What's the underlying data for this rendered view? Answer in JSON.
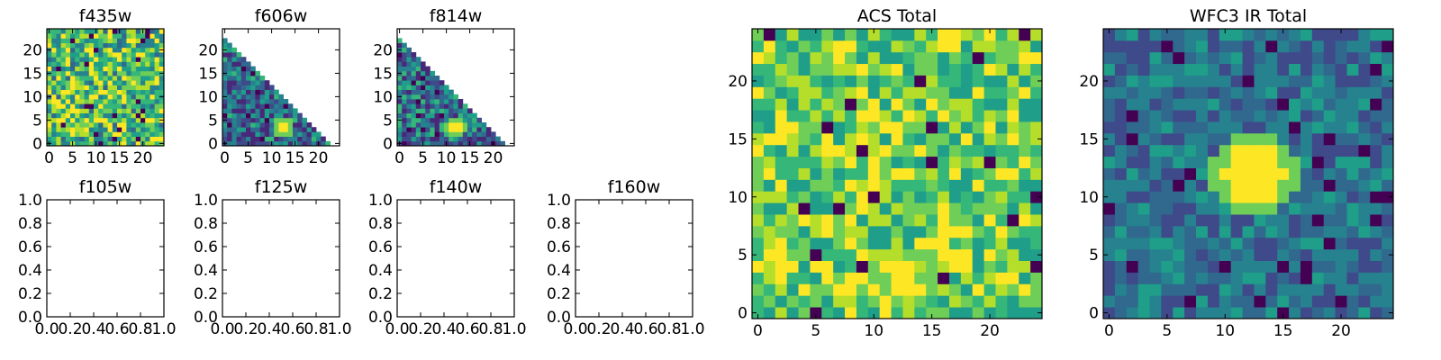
{
  "colormap": "viridis",
  "colors": {
    "viridis": [
      "#440154",
      "#482878",
      "#3e4a89",
      "#31688e",
      "#26828e",
      "#1f9e89",
      "#35b779",
      "#6ece58",
      "#b5de2b",
      "#fde725"
    ],
    "axes_border": "#000000",
    "background": "#ffffff"
  },
  "chart_data": [
    {
      "id": "f435w",
      "type": "heatmap",
      "title": "f435w",
      "grid": [
        25,
        25
      ],
      "mask": "none",
      "xticks": [
        "0",
        "5",
        "10",
        "15",
        "20"
      ],
      "yticks": [
        "0",
        "5",
        "10",
        "15",
        "20"
      ],
      "xlim": [
        -0.5,
        24.5
      ],
      "ylim": [
        -0.5,
        24.5
      ],
      "value_range": [
        0.35,
        1.0
      ],
      "blob": null,
      "seed": 11
    },
    {
      "id": "f606w",
      "type": "heatmap",
      "title": "f606w",
      "grid": [
        25,
        25
      ],
      "mask": "lower-left-triangle",
      "xticks": [
        "0",
        "5",
        "10",
        "15",
        "20"
      ],
      "yticks": [
        "0",
        "5",
        "10",
        "15",
        "20"
      ],
      "xlim": [
        -0.5,
        24.5
      ],
      "ylim": [
        -0.5,
        24.5
      ],
      "value_range": [
        0.1,
        0.65
      ],
      "blob": {
        "x": 12.5,
        "y": 3.5,
        "r": 1.3
      },
      "seed": 23
    },
    {
      "id": "f814w",
      "type": "heatmap",
      "title": "f814w",
      "grid": [
        25,
        25
      ],
      "mask": "lower-left-triangle",
      "xticks": [
        "0",
        "5",
        "10",
        "15",
        "20"
      ],
      "yticks": [
        "0",
        "5",
        "10",
        "15",
        "20"
      ],
      "xlim": [
        -0.5,
        24.5
      ],
      "ylim": [
        -0.5,
        24.5
      ],
      "value_range": [
        0.1,
        0.7
      ],
      "blob": {
        "x": 12.0,
        "y": 3.5,
        "r": 1.2
      },
      "seed": 37
    },
    {
      "id": "f105w",
      "type": "empty",
      "title": "f105w",
      "xticks": [
        "0.0",
        "0.2",
        "0.4",
        "0.6",
        "0.8",
        "1.0"
      ],
      "yticks": [
        "0.0",
        "0.2",
        "0.4",
        "0.6",
        "0.8",
        "1.0"
      ],
      "xlim": [
        0,
        1
      ],
      "ylim": [
        0,
        1
      ]
    },
    {
      "id": "f125w",
      "type": "empty",
      "title": "f125w",
      "xticks": [
        "0.0",
        "0.2",
        "0.4",
        "0.6",
        "0.8",
        "1.0"
      ],
      "yticks": [
        "0.0",
        "0.2",
        "0.4",
        "0.6",
        "0.8",
        "1.0"
      ],
      "xlim": [
        0,
        1
      ],
      "ylim": [
        0,
        1
      ]
    },
    {
      "id": "f140w",
      "type": "empty",
      "title": "f140w",
      "xticks": [
        "0.0",
        "0.2",
        "0.4",
        "0.6",
        "0.8",
        "1.0"
      ],
      "yticks": [
        "0.0",
        "0.2",
        "0.4",
        "0.6",
        "0.8",
        "1.0"
      ],
      "xlim": [
        0,
        1
      ],
      "ylim": [
        0,
        1
      ]
    },
    {
      "id": "f160w",
      "type": "empty",
      "title": "f160w",
      "xticks": [
        "0.0",
        "0.2",
        "0.4",
        "0.6",
        "0.8",
        "1.0"
      ],
      "yticks": [
        "0.0",
        "0.2",
        "0.4",
        "0.6",
        "0.8",
        "1.0"
      ],
      "xlim": [
        0,
        1
      ],
      "ylim": [
        0,
        1
      ]
    },
    {
      "id": "acs-total",
      "type": "heatmap",
      "title": "ACS Total",
      "grid": [
        25,
        25
      ],
      "mask": "none",
      "xticks": [
        "0",
        "5",
        "10",
        "15",
        "20"
      ],
      "yticks": [
        "0",
        "5",
        "10",
        "15",
        "20"
      ],
      "xlim": [
        -0.5,
        24.5
      ],
      "ylim": [
        -0.5,
        24.5
      ],
      "value_range": [
        0.5,
        1.0
      ],
      "blob": {
        "x": 12.5,
        "y": 3.0,
        "r": 1.5
      },
      "seed": 53
    },
    {
      "id": "wfc3-ir-total",
      "type": "heatmap",
      "title": "WFC3 IR Total",
      "grid": [
        25,
        25
      ],
      "mask": "none",
      "xticks": [
        "0",
        "5",
        "10",
        "15",
        "20"
      ],
      "yticks": [
        "0",
        "5",
        "10",
        "15",
        "20"
      ],
      "xlim": [
        -0.5,
        24.5
      ],
      "ylim": [
        -0.5,
        24.5
      ],
      "value_range": [
        0.2,
        0.55
      ],
      "blob": {
        "x": 12.5,
        "y": 12.0,
        "r": 2.6
      },
      "seed": 71
    }
  ]
}
